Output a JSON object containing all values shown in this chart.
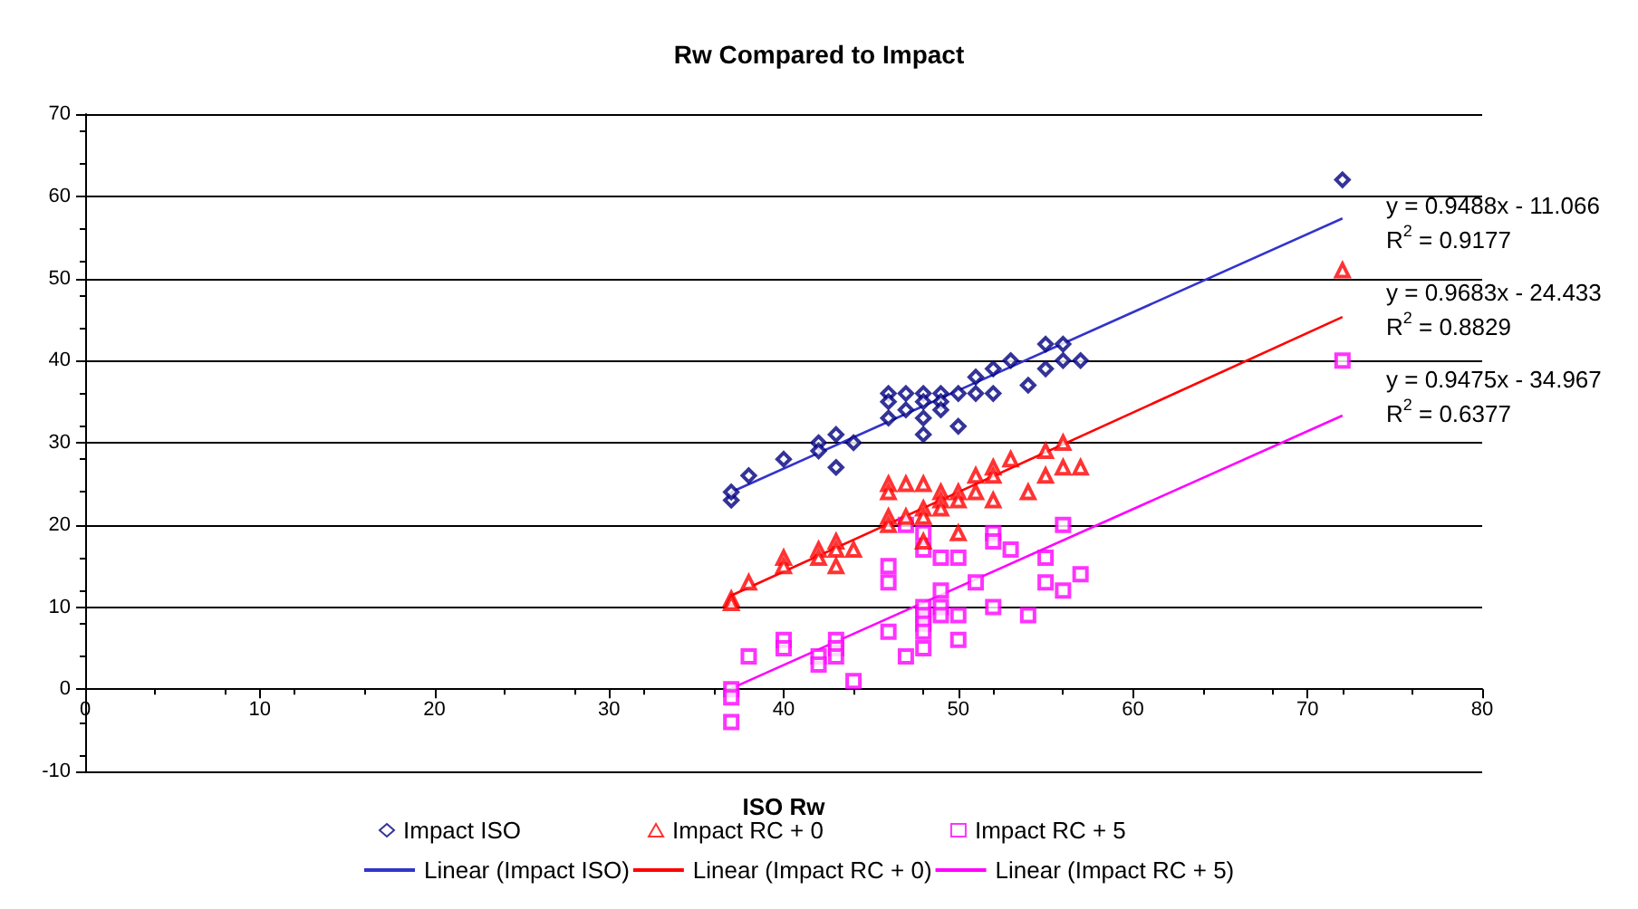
{
  "chart_data": {
    "type": "scatter",
    "title": "Rw Compared to Impact",
    "xlabel": "ISO Rw",
    "xlim": [
      0,
      80
    ],
    "xticks": [
      0,
      10,
      20,
      30,
      40,
      50,
      60,
      70,
      80
    ],
    "ylim": [
      -10,
      70
    ],
    "yticks": [
      -10,
      0,
      10,
      20,
      30,
      40,
      50,
      60,
      70
    ],
    "grid": "y",
    "legend": "bottom",
    "annotations": [
      "y = 0.9488x - 11.066\nR$^{2}$ = 0.9177",
      "y = 0.9683x - 24.433\nR$^{2}$ = 0.8829",
      "y = 0.9475x - 34.967\nR$^{2}$ = 0.6377"
    ],
    "series": [
      {
        "name": "Impact ISO",
        "marker": "diamond",
        "color": "#000080",
        "x": [
          37,
          37,
          38,
          40,
          42,
          42,
          43,
          43,
          44,
          46,
          46,
          46,
          47,
          47,
          48,
          48,
          48,
          48,
          49,
          49,
          49,
          50,
          50,
          51,
          51,
          52,
          52,
          53,
          54,
          55,
          55,
          56,
          56,
          57,
          72
        ],
        "values": [
          23,
          24,
          26,
          28,
          30,
          29,
          31,
          27,
          30,
          36,
          35,
          33,
          36,
          34,
          36,
          35,
          33,
          31,
          36,
          35,
          34,
          36,
          32,
          38,
          36,
          39,
          36,
          40,
          37,
          42,
          39,
          42,
          40,
          40,
          62
        ]
      },
      {
        "name": "Impact RC + 0",
        "marker": "triangle",
        "color": "#ff0000",
        "x": [
          37,
          37,
          38,
          40,
          40,
          42,
          42,
          43,
          43,
          43,
          44,
          46,
          46,
          46,
          46,
          47,
          47,
          48,
          48,
          48,
          48,
          49,
          49,
          49,
          50,
          50,
          50,
          51,
          51,
          52,
          52,
          52,
          53,
          54,
          55,
          55,
          56,
          56,
          57,
          72
        ],
        "values": [
          11,
          10.5,
          13,
          16,
          15,
          17,
          16,
          18,
          17,
          15,
          17,
          25,
          24,
          21,
          20,
          25,
          21,
          25,
          22,
          21,
          18,
          24,
          23,
          22,
          24,
          23,
          19,
          26,
          24,
          27,
          26,
          23,
          28,
          24,
          29,
          26,
          30,
          27,
          27,
          51
        ]
      },
      {
        "name": "Impact RC + 5",
        "marker": "square",
        "color": "#ff00ff",
        "x": [
          37,
          37,
          37,
          38,
          40,
          40,
          42,
          42,
          43,
          43,
          43,
          44,
          46,
          46,
          46,
          47,
          47,
          48,
          48,
          48,
          48,
          48,
          48,
          48,
          49,
          49,
          49,
          49,
          50,
          50,
          50,
          51,
          52,
          52,
          52,
          53,
          54,
          55,
          55,
          56,
          56,
          57,
          72
        ],
        "values": [
          0,
          -1,
          -4,
          4,
          6,
          5,
          4,
          3,
          6,
          5,
          4,
          1,
          15,
          13,
          7,
          20,
          4,
          19,
          17,
          10,
          9,
          8,
          7,
          5,
          16,
          12,
          10,
          9,
          16,
          9,
          6,
          13,
          19,
          18,
          10,
          17,
          9,
          16,
          13,
          20,
          12,
          14,
          40
        ]
      },
      {
        "name": "Linear (Impact ISO)",
        "type": "line",
        "marker": "none",
        "color": "#3333cc",
        "x": [
          37,
          72
        ],
        "values": [
          24.0,
          57.3
        ]
      },
      {
        "name": "Linear (Impact RC + 0)",
        "type": "line",
        "marker": "none",
        "color": "#ff0000",
        "x": [
          37,
          72
        ],
        "values": [
          11.4,
          45.3
        ]
      },
      {
        "name": "Linear (Impact RC + 5)",
        "type": "line",
        "marker": "none",
        "color": "#ff00ff",
        "x": [
          37,
          72
        ],
        "values": [
          0.1,
          33.3
        ]
      }
    ]
  }
}
